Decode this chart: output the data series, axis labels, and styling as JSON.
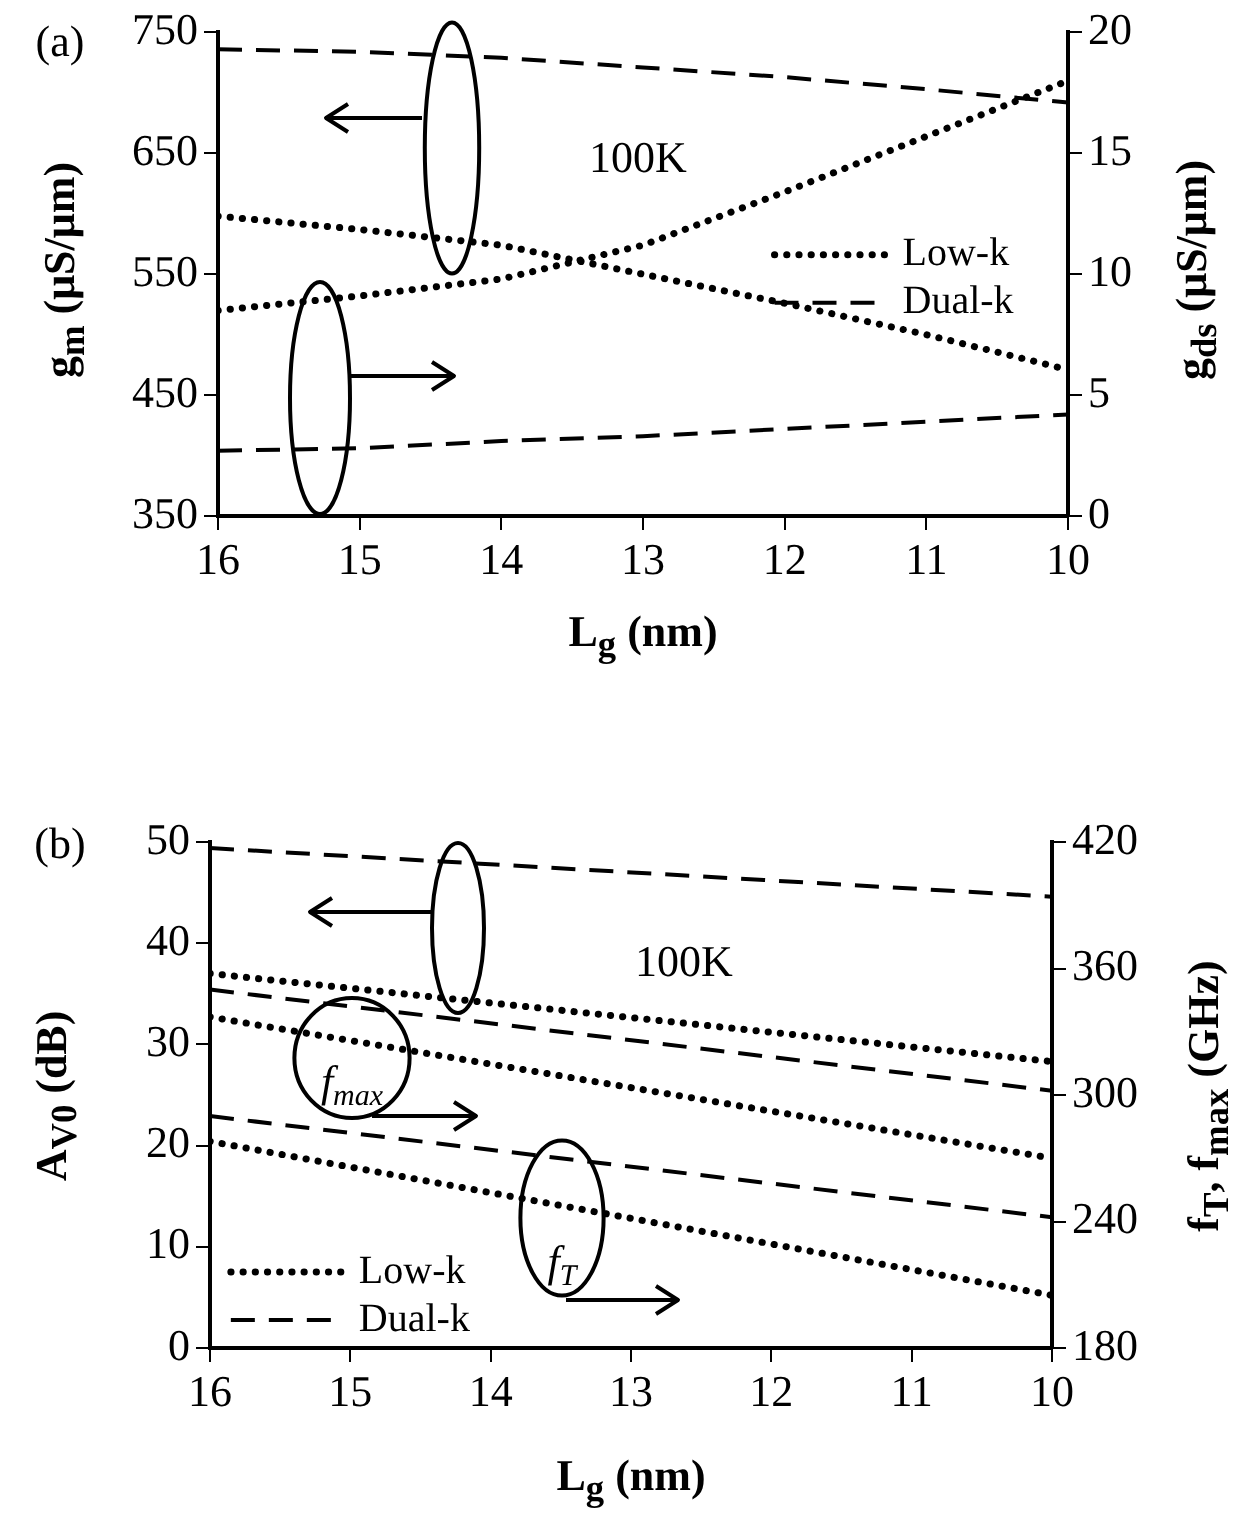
{
  "chart_data": [
    {
      "type": "line",
      "x": [
        16,
        15,
        14,
        13,
        12,
        11,
        10
      ],
      "xlim": [
        16,
        10
      ],
      "xticks": [
        16,
        15,
        14,
        13,
        12,
        11,
        10
      ],
      "ylim": [
        350,
        750
      ],
      "yticks": [
        350,
        450,
        550,
        650,
        750
      ],
      "y2lim": [
        0,
        20
      ],
      "y2ticks": [
        0,
        5,
        10,
        15,
        20
      ],
      "xlabel": "L$_{g}$ (nm)",
      "ylabel": "g$_{m}$ (μS/μm)",
      "y2label": "g$_{ds}$ (μS/μm)",
      "annotations": [
        "(a)",
        "100K"
      ],
      "legend": "right",
      "grid": false,
      "marker": "none",
      "series": [
        {
          "name": "Low-k",
          "color": "#000000",
          "line_style": "dotted",
          "values": [
            598,
            587,
            574,
            550,
            526,
            500,
            471
          ]
        },
        {
          "name": "Dual-k",
          "color": "#000000",
          "line_style": "dashed",
          "values": [
            736,
            734,
            729,
            721,
            713,
            703,
            692
          ]
        },
        {
          "color": "#000000",
          "line_style": "dotted",
          "axis": "y2",
          "values": [
            8.5,
            9.1,
            9.8,
            11.2,
            13.4,
            15.7,
            18.0
          ]
        },
        {
          "color": "#000000",
          "line_style": "dashed",
          "axis": "y2",
          "values": [
            2.7,
            2.8,
            3.1,
            3.3,
            3.6,
            3.9,
            4.2
          ]
        }
      ]
    },
    {
      "type": "line",
      "x": [
        16,
        10
      ],
      "xlim": [
        16,
        10
      ],
      "xticks": [
        16,
        15,
        14,
        13,
        12,
        11,
        10
      ],
      "ylim": [
        0,
        50
      ],
      "yticks": [
        0,
        10,
        20,
        30,
        40,
        50
      ],
      "y2lim": [
        180,
        420
      ],
      "y2ticks": [
        180,
        240,
        300,
        360,
        420
      ],
      "xlabel": "L$_{g}$ (nm)",
      "ylabel": "A$_{V0}$ (dB)",
      "y2label": "f$_{T}$, f$_{max}$ (GHz)",
      "annotations": [
        "(b)",
        "100K",
        "f$_{max}$",
        "f$_{T}$"
      ],
      "legend": "bottom left",
      "grid": false,
      "marker": "none",
      "series": [
        {
          "name": "Low-k",
          "color": "#000000",
          "line_style": "dotted",
          "values": [
            37.0,
            28.3
          ]
        },
        {
          "name": "Dual-k",
          "color": "#000000",
          "line_style": "dashed",
          "values": [
            49.4,
            44.6
          ]
        },
        {
          "color": "#000000",
          "line_style": "dashed",
          "axis": "y2",
          "values": [
            350,
            302
          ]
        },
        {
          "color": "#000000",
          "line_style": "dotted",
          "axis": "y2",
          "values": [
            337,
            270
          ]
        },
        {
          "color": "#000000",
          "line_style": "dashed",
          "axis": "y2",
          "values": [
            290,
            242
          ]
        },
        {
          "color": "#000000",
          "line_style": "dotted",
          "axis": "y2",
          "values": [
            278,
            205
          ]
        }
      ]
    }
  ]
}
